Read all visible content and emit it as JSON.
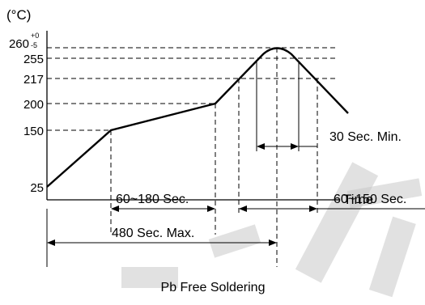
{
  "chart_data": {
    "type": "line",
    "title": "",
    "caption": "Pb Free Soldering",
    "ylabel": "(°C)",
    "xlabel": "Time",
    "y_ticks": [
      {
        "label": "25",
        "value": 25
      },
      {
        "label": "150",
        "value": 150
      },
      {
        "label": "200",
        "value": 200
      },
      {
        "label": "217",
        "value": 217
      },
      {
        "label": "255",
        "value": 255
      },
      {
        "label": "260",
        "value": 260,
        "sup": "+0",
        "sub": "-5"
      }
    ],
    "profile_points": [
      {
        "t": 0,
        "temp": 25
      },
      {
        "t": 80,
        "temp": 150
      },
      {
        "t": 220,
        "temp": 200
      },
      {
        "t": 280,
        "temp": 255
      },
      {
        "t": 300,
        "temp": 260
      },
      {
        "t": 320,
        "temp": 255
      },
      {
        "t": 390,
        "temp": 150
      }
    ],
    "annotations": [
      {
        "label": "60~180 Sec.",
        "from_t": 80,
        "to_t": 220
      },
      {
        "label": "480 Sec. Max.",
        "from_t": 0,
        "to_t": 300
      },
      {
        "label": "60~150 Sec.",
        "from_t": 245,
        "to_t": 345
      },
      {
        "label": "30 Sec. Min.",
        "from_t": 275,
        "to_t": 325
      }
    ],
    "grid": false
  }
}
